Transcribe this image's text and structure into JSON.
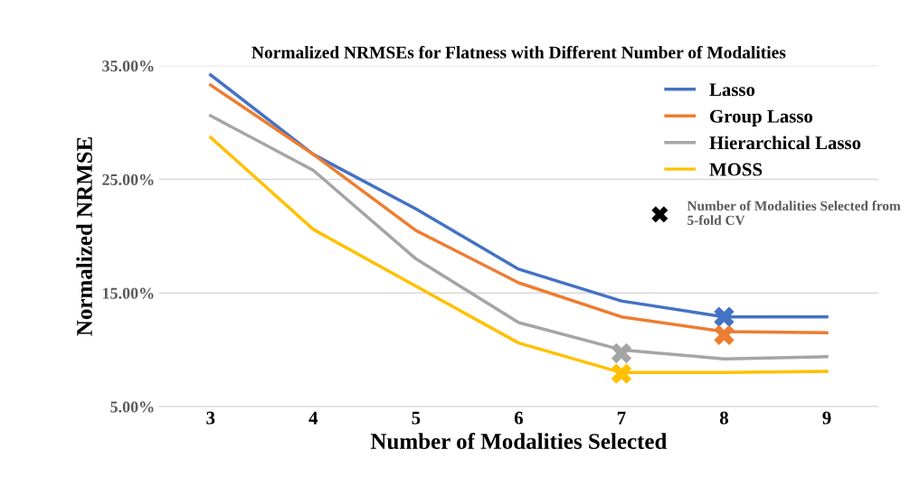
{
  "chart_data": {
    "type": "line",
    "title": "Normalized NRMSEs for Flatness with Different Number of Modalities",
    "xlabel": "Number of Modalities Selected",
    "ylabel": "Normalized NRMSE",
    "categories": [
      "3",
      "4",
      "5",
      "6",
      "7",
      "8",
      "9"
    ],
    "ylim": [
      5,
      35
    ],
    "yticks": [
      {
        "value": 5,
        "label": "5.00%"
      },
      {
        "value": 15,
        "label": "15.00%"
      },
      {
        "value": 25,
        "label": "25.00%"
      },
      {
        "value": 35,
        "label": "35.00%"
      }
    ],
    "grid": "y",
    "legend": "top right",
    "marker": "none",
    "line_style": "solid",
    "annotations": [
      "Number of Modalities Selected from 5-fold CV"
    ],
    "series": [
      {
        "name": "Lasso",
        "color": "#4472c4",
        "values": [
          34.2,
          27.2,
          22.4,
          17.1,
          14.3,
          12.9,
          12.9
        ]
      },
      {
        "name": "Group Lasso",
        "color": "#ed7d31",
        "values": [
          33.3,
          27.2,
          20.5,
          15.9,
          12.9,
          11.6,
          11.5
        ]
      },
      {
        "name": "Hierarchical Lasso",
        "color": "#a5a5a5",
        "values": [
          30.6,
          25.8,
          18.0,
          12.4,
          10.0,
          9.2,
          9.4
        ]
      },
      {
        "name": "MOSS",
        "color": "#ffc000",
        "values": [
          28.7,
          20.6,
          15.6,
          10.6,
          8.0,
          8.0,
          8.1
        ]
      },
      {
        "type": "scatter",
        "marker": "cross",
        "color": "#4472c4",
        "x": [
          "8"
        ],
        "values": [
          12.9
        ]
      },
      {
        "type": "scatter",
        "marker": "cross",
        "color": "#ed7d31",
        "x": [
          "8"
        ],
        "values": [
          11.3
        ]
      },
      {
        "type": "scatter",
        "marker": "cross",
        "color": "#a5a5a5",
        "x": [
          "7"
        ],
        "values": [
          9.7
        ]
      },
      {
        "type": "scatter",
        "marker": "cross",
        "color": "#ffc000",
        "x": [
          "7"
        ],
        "values": [
          7.9
        ]
      }
    ]
  }
}
